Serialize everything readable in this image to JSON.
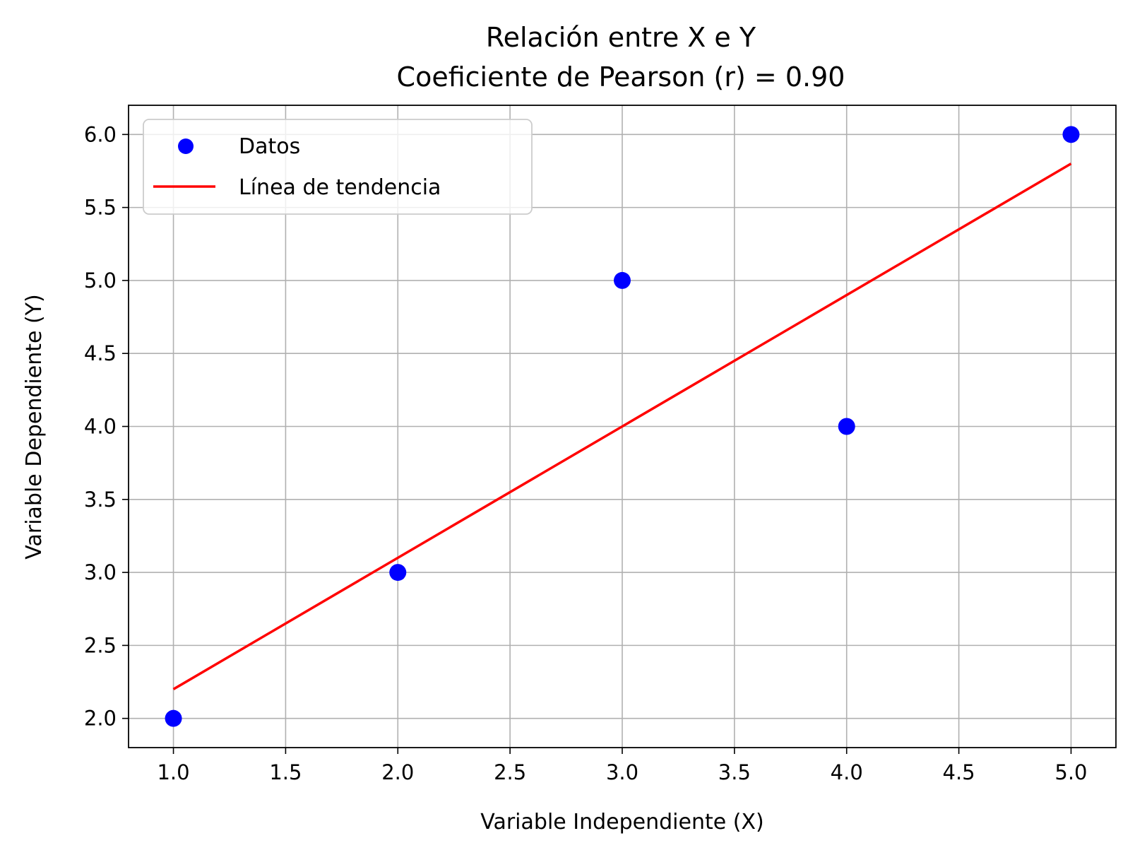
{
  "chart_data": {
    "type": "scatter",
    "title_lines": [
      "Relación entre X e Y",
      "Coeficiente de Pearson (r) = 0.90"
    ],
    "xlabel": "Variable Independiente (X)",
    "ylabel": "Variable Dependiente (Y)",
    "xlim": [
      0.8,
      5.2
    ],
    "ylim": [
      1.8,
      6.2
    ],
    "xticks": [
      "1.0",
      "1.5",
      "2.0",
      "2.5",
      "3.0",
      "3.5",
      "4.0",
      "4.5",
      "5.0"
    ],
    "yticks": [
      "2.0",
      "2.5",
      "3.0",
      "3.5",
      "4.0",
      "4.5",
      "5.0",
      "5.5",
      "6.0"
    ],
    "grid": true,
    "legend_position": "top-left",
    "series": [
      {
        "name": "Datos",
        "kind": "scatter",
        "color": "#0000ff",
        "x": [
          1,
          2,
          3,
          4,
          5
        ],
        "y": [
          2,
          3,
          5,
          4,
          6
        ]
      },
      {
        "name": "Línea de tendencia",
        "kind": "line",
        "color": "#ff0000",
        "x": [
          1,
          5
        ],
        "y": [
          2.2,
          5.8
        ]
      }
    ]
  }
}
